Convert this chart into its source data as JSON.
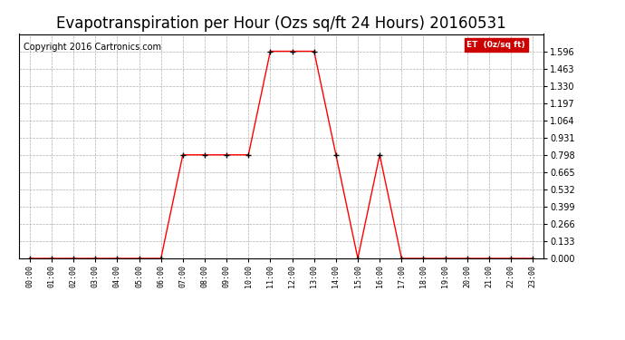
{
  "title": "Evapotranspiration per Hour (Ozs sq/ft 24 Hours) 20160531",
  "copyright_text": "Copyright 2016 Cartronics.com",
  "legend_label": "ET  (0z/sq ft)",
  "x_labels": [
    "00:00",
    "01:00",
    "02:00",
    "03:00",
    "04:00",
    "05:00",
    "06:00",
    "07:00",
    "08:00",
    "09:00",
    "10:00",
    "11:00",
    "12:00",
    "13:00",
    "14:00",
    "15:00",
    "16:00",
    "17:00",
    "18:00",
    "19:00",
    "20:00",
    "21:00",
    "22:00",
    "23:00"
  ],
  "hours": [
    0,
    1,
    2,
    3,
    4,
    5,
    6,
    7,
    8,
    9,
    10,
    11,
    12,
    13,
    14,
    15,
    16,
    17,
    18,
    19,
    20,
    21,
    22,
    23
  ],
  "values": [
    0.0,
    0.0,
    0.0,
    0.0,
    0.0,
    0.0,
    0.0,
    0.798,
    0.798,
    0.798,
    0.798,
    1.596,
    1.596,
    1.596,
    0.798,
    0.0,
    0.798,
    0.0,
    0.0,
    0.0,
    0.0,
    0.0,
    0.0,
    0.0
  ],
  "line_color": "red",
  "marker_color": "black",
  "background_color": "#ffffff",
  "grid_color": "#b0b0b0",
  "title_fontsize": 12,
  "copyright_fontsize": 7,
  "legend_bg_color": "#cc0000",
  "legend_text_color": "#ffffff",
  "ylim": [
    0.0,
    1.729
  ],
  "yticks": [
    0.0,
    0.133,
    0.266,
    0.399,
    0.532,
    0.665,
    0.798,
    0.931,
    1.064,
    1.197,
    1.33,
    1.463,
    1.596
  ]
}
